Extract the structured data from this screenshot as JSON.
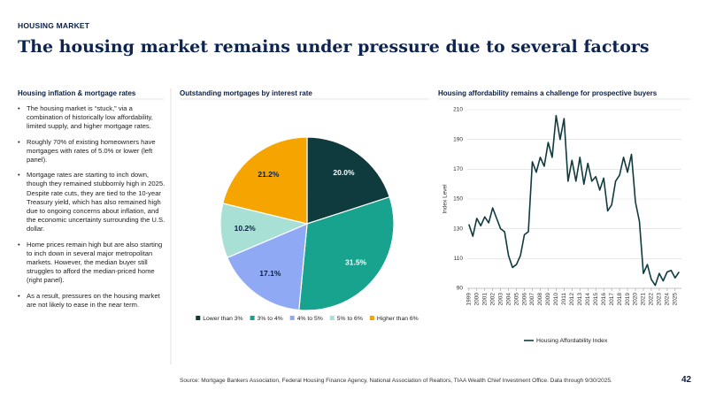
{
  "header": {
    "kicker": "HOUSING MARKET",
    "title": "The housing market remains under pressure due to several factors"
  },
  "sidebar": {
    "heading": "Housing inflation & mortgage rates",
    "bullets": [
      "The housing market is “stuck,” via a combination of historically low affordability, limited supply, and higher mortgage rates.",
      "Roughly 70% of existing homeowners have mortgages with rates of 5.0% or lower (left panel).",
      "Mortgage rates are starting to inch down, though they remained stubbornly high in 2025. Despite rate cuts, they are tied to the 10-year Treasury yield, which has also remained high due to ongoing concerns about inflation, and the economic uncertainty surrounding the U.S. dollar.",
      "Home prices remain high but are also starting to inch down in several major metropolitan markets. However, the median buyer still struggles to afford the median-priced home (right panel).",
      "As a result, pressures on the housing market are not likely to ease in the near term."
    ]
  },
  "chart_data": [
    {
      "type": "pie",
      "title": "Outstanding mortgages by interest rate",
      "categories": [
        "Lower than 3%",
        "3% to 4%",
        "4% to 5%",
        "5% to 6%",
        "Higher than 6%"
      ],
      "values": [
        20.0,
        31.5,
        17.1,
        10.2,
        21.2
      ],
      "value_labels": [
        "20.0%",
        "31.5%",
        "17.1%",
        "10.2%",
        "21.2%"
      ],
      "colors": [
        "#0f3b3e",
        "#17a38d",
        "#8fa9f5",
        "#a9e0d6",
        "#f5a400"
      ],
      "legend": "bottom"
    },
    {
      "type": "line",
      "title": "Housing affordability remains a challenge for prospective buyers",
      "ylabel": "Index Level",
      "x": [
        1999.0,
        1999.5,
        2000.0,
        2000.5,
        2001.0,
        2001.5,
        2002.0,
        2002.5,
        2003.0,
        2003.5,
        2004.0,
        2004.5,
        2005.0,
        2005.5,
        2006.0,
        2006.5,
        2007.0,
        2007.5,
        2008.0,
        2008.5,
        2009.0,
        2009.5,
        2010.0,
        2010.5,
        2011.0,
        2011.5,
        2012.0,
        2012.5,
        2013.0,
        2013.5,
        2014.0,
        2014.5,
        2015.0,
        2015.5,
        2016.0,
        2016.5,
        2017.0,
        2017.5,
        2018.0,
        2018.5,
        2019.0,
        2019.5,
        2020.0,
        2020.5,
        2021.0,
        2021.5,
        2022.0,
        2022.5,
        2023.0,
        2023.5,
        2024.0,
        2024.5,
        2025.0,
        2025.5
      ],
      "series": [
        {
          "name": "Housing Affordability Index",
          "color": "#0f3b3e",
          "values": [
            133,
            125,
            137,
            132,
            138,
            134,
            144,
            137,
            130,
            128,
            112,
            104,
            106,
            112,
            126,
            128,
            175,
            168,
            178,
            172,
            188,
            178,
            206,
            190,
            204,
            162,
            176,
            162,
            178,
            160,
            174,
            162,
            165,
            156,
            164,
            142,
            146,
            162,
            166,
            178,
            168,
            180,
            148,
            135,
            100,
            106,
            96,
            92,
            100,
            95,
            101,
            102,
            97,
            101
          ]
        }
      ],
      "xlim": [
        1998.8,
        2025.8
      ],
      "xticks": [
        1999,
        2000,
        2001,
        2002,
        2003,
        2004,
        2005,
        2006,
        2007,
        2008,
        2009,
        2010,
        2011,
        2012,
        2013,
        2014,
        2015,
        2016,
        2017,
        2018,
        2019,
        2020,
        2021,
        2022,
        2023,
        2024,
        2025
      ],
      "ylim": [
        90,
        210
      ],
      "yticks": [
        90,
        110,
        130,
        150,
        170,
        190,
        210
      ],
      "grid": true,
      "legend": "bottom"
    }
  ],
  "footer": {
    "source": "Source: Mortgage Bankers Association, Federal Housing Finance Agency, National Association of Realtors, TIAA Wealth Chief Investment Office. Data through 9/30/2025.",
    "page_number": "42"
  }
}
